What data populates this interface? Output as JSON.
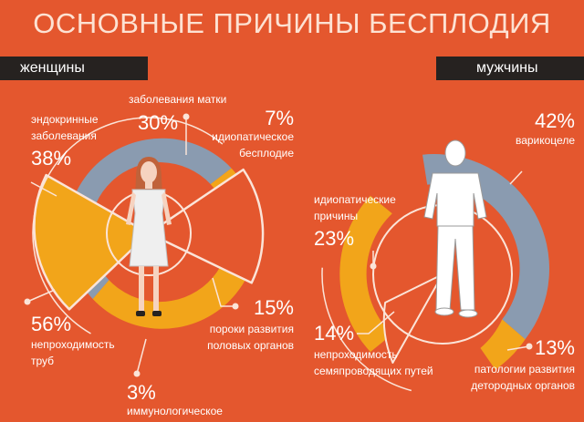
{
  "title": "ОСНОВНЫЕ ПРИЧИНЫ БЕСПЛОДИЯ",
  "colors": {
    "background": "#e4572e",
    "blue_gray": "#8a9bb0",
    "amber": "#f2a51a",
    "line": "#fbe4d8",
    "bar": "#262220"
  },
  "icons": {
    "female": "woman-silhouette-icon",
    "male": "man-silhouette-icon"
  },
  "chart_data": [
    {
      "type": "pie",
      "title": "женщины",
      "unit": "%",
      "slices": [
        {
          "label_lines": [
            "заболевания матки"
          ],
          "percent": "30%",
          "value": 30
        },
        {
          "label_lines": [
            "идиопатическое",
            "бесплодие"
          ],
          "percent": "7%",
          "value": 7
        },
        {
          "label_lines": [
            "пороки развития",
            "половых органов"
          ],
          "percent": "15%",
          "value": 15
        },
        {
          "label_lines": [
            "иммунологическое"
          ],
          "percent": "3%",
          "value": 3
        },
        {
          "label_lines": [
            "непроходимость",
            "труб"
          ],
          "percent": "56%",
          "value": 56
        },
        {
          "label_lines": [
            "эндокринные",
            "заболевания"
          ],
          "percent": "38%",
          "value": 38
        }
      ]
    },
    {
      "type": "pie",
      "title": "мужчины",
      "unit": "%",
      "slices": [
        {
          "label_lines": [
            "варикоцеле"
          ],
          "percent": "42%",
          "value": 42
        },
        {
          "label_lines": [
            "патологии развития",
            "детородных органов"
          ],
          "percent": "13%",
          "value": 13
        },
        {
          "label_lines": [
            "непроходимость",
            "семяпроводящих путей"
          ],
          "percent": "14%",
          "value": 14
        },
        {
          "label_lines": [
            "идиопатические",
            "причины"
          ],
          "percent": "23%",
          "value": 23
        }
      ]
    }
  ]
}
